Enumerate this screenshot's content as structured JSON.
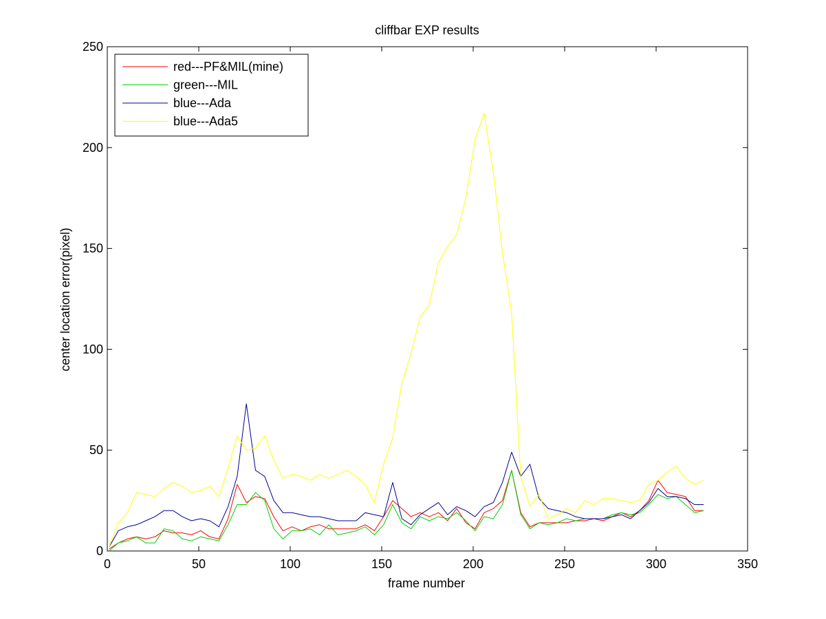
{
  "chart_data": {
    "type": "line",
    "title": "cliffbar EXP results",
    "xlabel": "frame number",
    "ylabel": "center location error(pixel)",
    "xlim": [
      0,
      350
    ],
    "ylim": [
      0,
      250
    ],
    "xticks": [
      0,
      50,
      100,
      150,
      200,
      250,
      300,
      350
    ],
    "yticks": [
      0,
      50,
      100,
      150,
      200,
      250
    ],
    "grid": false,
    "legend_position": "top-left",
    "x": [
      1,
      6,
      11,
      16,
      21,
      26,
      31,
      36,
      41,
      46,
      51,
      56,
      61,
      66,
      71,
      76,
      81,
      86,
      91,
      96,
      101,
      106,
      111,
      116,
      121,
      126,
      131,
      136,
      141,
      146,
      151,
      156,
      161,
      166,
      171,
      176,
      181,
      186,
      191,
      196,
      201,
      206,
      211,
      216,
      221,
      226,
      231,
      236,
      241,
      246,
      251,
      256,
      261,
      266,
      271,
      276,
      281,
      286,
      291,
      296,
      301,
      306,
      311,
      316,
      321,
      326
    ],
    "series": [
      {
        "name": "red---PF&MIL(mine)",
        "color": "#ff0000",
        "values": [
          1,
          4,
          6,
          7,
          6,
          7,
          10,
          9,
          9,
          8,
          10,
          7,
          6,
          16,
          33,
          24,
          27,
          26,
          17,
          10,
          12,
          10,
          12,
          13,
          11,
          11,
          11,
          11,
          13,
          10,
          17,
          25,
          21,
          17,
          19,
          17,
          19,
          15,
          21,
          14,
          11,
          19,
          21,
          25,
          40,
          19,
          12,
          14,
          14,
          14,
          14,
          15,
          15,
          16,
          15,
          17,
          19,
          17,
          20,
          25,
          35,
          29,
          28,
          27,
          20,
          20
        ]
      },
      {
        "name": "green---MIL",
        "color": "#00d000",
        "values": [
          0,
          4,
          5,
          7,
          4,
          4,
          11,
          10,
          6,
          5,
          7,
          6,
          5,
          13,
          23,
          23,
          29,
          25,
          11,
          6,
          10,
          10,
          11,
          8,
          13,
          8,
          9,
          10,
          12,
          8,
          13,
          23,
          14,
          11,
          17,
          15,
          17,
          16,
          19,
          15,
          10,
          17,
          16,
          23,
          40,
          18,
          11,
          14,
          13,
          14,
          16,
          15,
          16,
          16,
          16,
          18,
          19,
          18,
          19,
          23,
          28,
          26,
          27,
          23,
          19,
          20
        ]
      },
      {
        "name": "blue---Ada",
        "color": "#000090",
        "values": [
          2,
          10,
          12,
          13,
          15,
          17,
          20,
          20,
          17,
          15,
          16,
          15,
          12,
          22,
          37,
          73,
          40,
          37,
          25,
          19,
          19,
          18,
          17,
          17,
          16,
          15,
          15,
          15,
          19,
          18,
          17,
          34,
          16,
          13,
          18,
          21,
          24,
          18,
          22,
          20,
          17,
          22,
          24,
          34,
          49,
          37,
          43,
          26,
          21,
          20,
          19,
          17,
          16,
          16,
          16,
          17,
          18,
          16,
          20,
          24,
          31,
          27,
          27,
          26,
          23,
          23
        ]
      },
      {
        "name": "blue---Ada5",
        "color": "#ffff00",
        "values": [
          2,
          14,
          19,
          29,
          28,
          27,
          31,
          34,
          32,
          29,
          30,
          32,
          27,
          41,
          57,
          50,
          51,
          57,
          45,
          36,
          38,
          37,
          35,
          38,
          36,
          38,
          40,
          37,
          33,
          24,
          43,
          56,
          83,
          98,
          116,
          122,
          143,
          151,
          157,
          175,
          204,
          217,
          188,
          148,
          118,
          37,
          22,
          28,
          16,
          18,
          21,
          19,
          25,
          23,
          26,
          26,
          25,
          24,
          25,
          33,
          35,
          39,
          42,
          36,
          33,
          35
        ]
      }
    ]
  }
}
